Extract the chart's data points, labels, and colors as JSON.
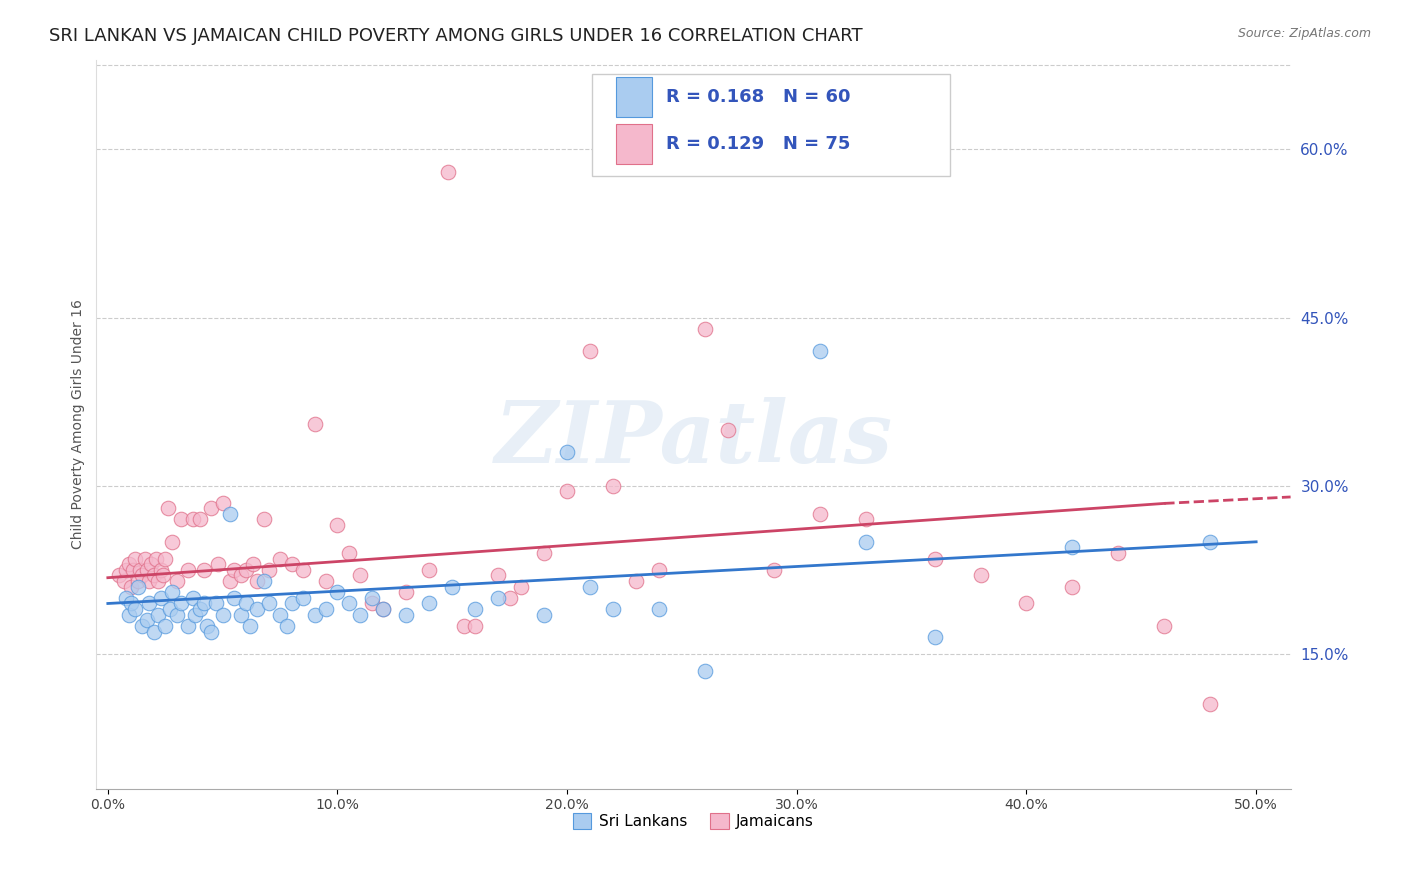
{
  "title": "SRI LANKAN VS JAMAICAN CHILD POVERTY AMONG GIRLS UNDER 16 CORRELATION CHART",
  "source": "Source: ZipAtlas.com",
  "ylabel": "Child Poverty Among Girls Under 16",
  "xlabel_ticks": [
    "0.0%",
    "10.0%",
    "20.0%",
    "30.0%",
    "40.0%",
    "50.0%"
  ],
  "xlabel_vals": [
    0.0,
    0.1,
    0.2,
    0.3,
    0.4,
    0.5
  ],
  "ylabel_ticks": [
    "15.0%",
    "30.0%",
    "45.0%",
    "60.0%"
  ],
  "ylabel_vals": [
    0.15,
    0.3,
    0.45,
    0.6
  ],
  "xlim": [
    -0.005,
    0.515
  ],
  "ylim": [
    0.03,
    0.68
  ],
  "sri_lankans": {
    "color": "#aaccf0",
    "edge_color": "#5599dd",
    "line_color": "#3377cc",
    "label": "Sri Lankans",
    "R": 0.168,
    "N": 60,
    "trend_y0": 0.195,
    "trend_y1": 0.25
  },
  "jamaicans": {
    "color": "#f5b8cc",
    "edge_color": "#e0708a",
    "line_color": "#cc4466",
    "label": "Jamaicans",
    "R": 0.129,
    "N": 75,
    "trend_y0": 0.218,
    "trend_y1": 0.29
  },
  "legend_color": "#3355bb",
  "watermark": "ZIPatlas",
  "title_fontsize": 13,
  "axis_label_fontsize": 10,
  "tick_fontsize": 10,
  "right_tick_color": "#3355bb",
  "background_color": "#ffffff",
  "grid_color": "#cccccc",
  "scatter_size": 110,
  "scatter_alpha": 0.75,
  "sri_x": [
    0.008,
    0.009,
    0.01,
    0.012,
    0.013,
    0.015,
    0.017,
    0.018,
    0.02,
    0.022,
    0.023,
    0.025,
    0.027,
    0.028,
    0.03,
    0.032,
    0.035,
    0.037,
    0.038,
    0.04,
    0.042,
    0.043,
    0.045,
    0.047,
    0.05,
    0.053,
    0.055,
    0.058,
    0.06,
    0.062,
    0.065,
    0.068,
    0.07,
    0.075,
    0.078,
    0.08,
    0.085,
    0.09,
    0.095,
    0.1,
    0.105,
    0.11,
    0.115,
    0.12,
    0.13,
    0.14,
    0.15,
    0.16,
    0.17,
    0.19,
    0.2,
    0.21,
    0.22,
    0.24,
    0.26,
    0.31,
    0.33,
    0.36,
    0.42,
    0.48
  ],
  "sri_y": [
    0.2,
    0.185,
    0.195,
    0.19,
    0.21,
    0.175,
    0.18,
    0.195,
    0.17,
    0.185,
    0.2,
    0.175,
    0.19,
    0.205,
    0.185,
    0.195,
    0.175,
    0.2,
    0.185,
    0.19,
    0.195,
    0.175,
    0.17,
    0.195,
    0.185,
    0.275,
    0.2,
    0.185,
    0.195,
    0.175,
    0.19,
    0.215,
    0.195,
    0.185,
    0.175,
    0.195,
    0.2,
    0.185,
    0.19,
    0.205,
    0.195,
    0.185,
    0.2,
    0.19,
    0.185,
    0.195,
    0.21,
    0.19,
    0.2,
    0.185,
    0.33,
    0.21,
    0.19,
    0.19,
    0.135,
    0.42,
    0.25,
    0.165,
    0.245,
    0.25
  ],
  "jam_x": [
    0.005,
    0.007,
    0.008,
    0.009,
    0.01,
    0.011,
    0.012,
    0.013,
    0.014,
    0.015,
    0.016,
    0.017,
    0.018,
    0.019,
    0.02,
    0.021,
    0.022,
    0.023,
    0.024,
    0.025,
    0.026,
    0.028,
    0.03,
    0.032,
    0.035,
    0.037,
    0.04,
    0.042,
    0.045,
    0.048,
    0.05,
    0.053,
    0.055,
    0.058,
    0.06,
    0.063,
    0.065,
    0.068,
    0.07,
    0.075,
    0.08,
    0.085,
    0.09,
    0.095,
    0.1,
    0.105,
    0.11,
    0.115,
    0.12,
    0.13,
    0.14,
    0.148,
    0.155,
    0.16,
    0.17,
    0.175,
    0.18,
    0.19,
    0.2,
    0.21,
    0.22,
    0.23,
    0.24,
    0.26,
    0.27,
    0.29,
    0.31,
    0.33,
    0.36,
    0.38,
    0.4,
    0.42,
    0.44,
    0.46,
    0.48
  ],
  "jam_y": [
    0.22,
    0.215,
    0.225,
    0.23,
    0.21,
    0.225,
    0.235,
    0.215,
    0.225,
    0.22,
    0.235,
    0.225,
    0.215,
    0.23,
    0.22,
    0.235,
    0.215,
    0.225,
    0.22,
    0.235,
    0.28,
    0.25,
    0.215,
    0.27,
    0.225,
    0.27,
    0.27,
    0.225,
    0.28,
    0.23,
    0.285,
    0.215,
    0.225,
    0.22,
    0.225,
    0.23,
    0.215,
    0.27,
    0.225,
    0.235,
    0.23,
    0.225,
    0.355,
    0.215,
    0.265,
    0.24,
    0.22,
    0.195,
    0.19,
    0.205,
    0.225,
    0.58,
    0.175,
    0.175,
    0.22,
    0.2,
    0.21,
    0.24,
    0.295,
    0.42,
    0.3,
    0.215,
    0.225,
    0.44,
    0.35,
    0.225,
    0.275,
    0.27,
    0.235,
    0.22,
    0.195,
    0.21,
    0.24,
    0.175,
    0.105
  ]
}
